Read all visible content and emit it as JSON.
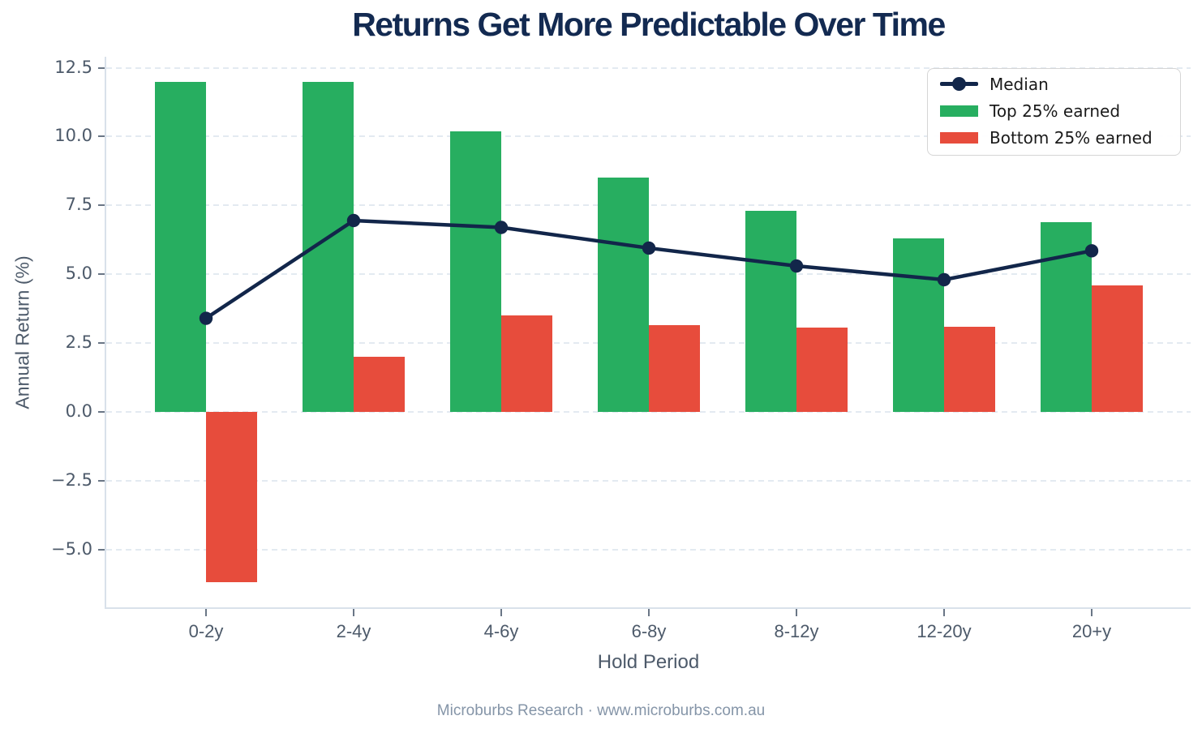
{
  "title": "Returns Get More Predictable Over Time",
  "footer": "Microburbs Research · www.microburbs.com.au",
  "colors": {
    "background": "#ffffff",
    "title": "#132a51",
    "axis_text": "#4d5a6a",
    "tick_text": "#4d5a6a",
    "tick_mark": "#6a7686",
    "footer_text": "#8595a8",
    "gridline": "#e3eaf1",
    "spine": "#d9e1ea",
    "legend_border": "#d5d5d5",
    "legend_text": "#1a1a1a",
    "median_line": "#12264a",
    "top25_green": "#27ae60",
    "bottom25_red": "#e74c3c"
  },
  "chart_data": {
    "type": "bar",
    "title": "Returns Get More Predictable Over Time",
    "xlabel": "Hold Period",
    "ylabel": "Annual Return (%)",
    "source_note": "Microburbs Research · www.microburbs.com.au",
    "categories": [
      "0-2y",
      "2-4y",
      "4-6y",
      "6-8y",
      "8-12y",
      "12-20y",
      "20+y"
    ],
    "series": [
      {
        "name": "Median",
        "type": "line",
        "color": "#12264a",
        "values": [
          3.4,
          6.95,
          6.7,
          5.95,
          5.3,
          4.8,
          5.85
        ]
      },
      {
        "name": "Top 25% earned",
        "type": "bar",
        "color": "#27ae60",
        "values": [
          12.0,
          12.0,
          10.2,
          8.5,
          7.3,
          6.3,
          6.9
        ]
      },
      {
        "name": "Bottom 25% earned",
        "type": "bar",
        "color": "#e74c3c",
        "values": [
          -6.2,
          2.0,
          3.5,
          3.15,
          3.05,
          3.1,
          4.6
        ]
      }
    ],
    "yticks": [
      12.5,
      10.0,
      7.5,
      5.0,
      2.5,
      0.0,
      -2.5,
      -5.0
    ],
    "ytick_labels": [
      "12.5",
      "10.0",
      "7.5",
      "5.0",
      "2.5",
      "0.0",
      "−2.5",
      "−5.0"
    ],
    "ylim": [
      -7.1,
      12.9
    ],
    "grid": true,
    "grid_style": "dashed",
    "legend_position": "upper right",
    "legend_entries": [
      "Median",
      "Top 25% earned",
      "Bottom 25% earned"
    ]
  }
}
